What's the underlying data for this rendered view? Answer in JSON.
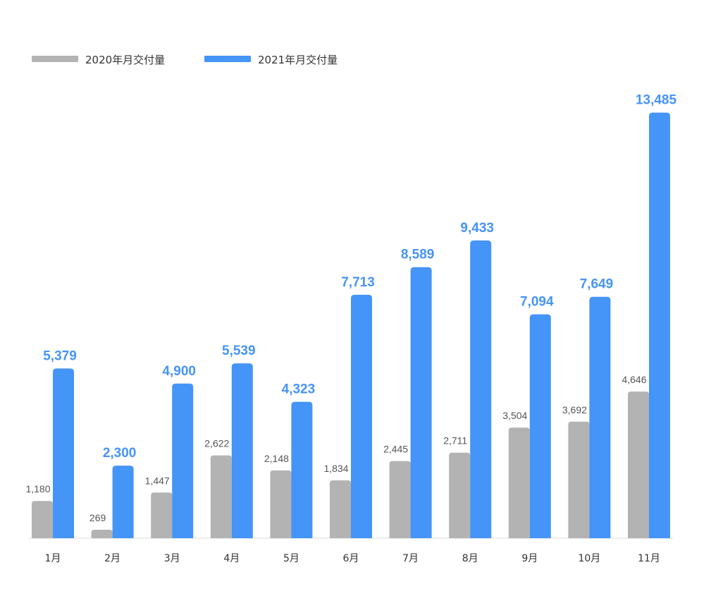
{
  "chart_data": {
    "type": "bar",
    "categories": [
      "1月",
      "2月",
      "3月",
      "4月",
      "5月",
      "6月",
      "7月",
      "8月",
      "9月",
      "10月",
      "11月"
    ],
    "series": [
      {
        "name": "2020年月交付量",
        "values": [
          1180,
          269,
          1447,
          2622,
          2148,
          1834,
          2445,
          2711,
          3504,
          3692,
          4646
        ],
        "labels": [
          "1,180",
          "269",
          "1,447",
          "2,622",
          "2,148",
          "1,834",
          "2,445",
          "2,711",
          "3,504",
          "3,692",
          "4,646"
        ],
        "color": "#b3b3b3"
      },
      {
        "name": "2021年月交付量",
        "values": [
          5379,
          2300,
          4900,
          5539,
          4323,
          7713,
          8589,
          9433,
          7094,
          7649,
          13485
        ],
        "labels": [
          "5,379",
          "2,300",
          "4,900",
          "5,539",
          "4,323",
          "7,713",
          "8,589",
          "9,433",
          "7,094",
          "7,649",
          "13,485"
        ],
        "color": "#4594f7"
      }
    ],
    "title": "",
    "xlabel": "",
    "ylabel": "",
    "ylim": [
      0,
      13700
    ],
    "grid": false,
    "legend_position": "top-left",
    "axis_color": "#dddddd"
  }
}
